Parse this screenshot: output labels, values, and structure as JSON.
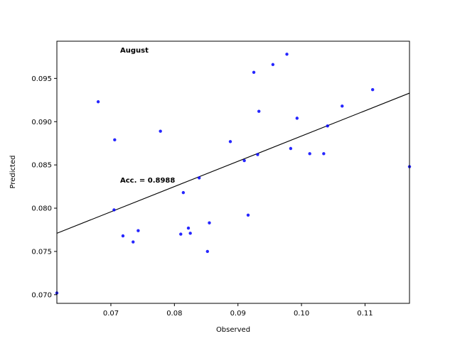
{
  "chart_data": {
    "type": "scatter",
    "title": "",
    "xlabel": "Observed",
    "ylabel": "Predicted",
    "xlim": [
      0.0615,
      0.117
    ],
    "ylim": [
      0.069,
      0.0993
    ],
    "xticks": [
      0.07,
      0.08,
      0.09,
      0.1,
      0.11
    ],
    "xtick_labels": [
      "0.07",
      "0.08",
      "0.09",
      "0.10",
      "0.11"
    ],
    "yticks": [
      0.07,
      0.075,
      0.08,
      0.085,
      0.09,
      0.095
    ],
    "ytick_labels": [
      "0.070",
      "0.075",
      "0.080",
      "0.085",
      "0.090",
      "0.095"
    ],
    "grid": false,
    "point_color": "#0000ff",
    "line_color": "#000000",
    "annotations": {
      "month": "August",
      "accuracy": "Acc. = 0.8988"
    },
    "points": [
      {
        "x": 0.0615,
        "y": 0.0702
      },
      {
        "x": 0.068,
        "y": 0.0923
      },
      {
        "x": 0.0706,
        "y": 0.0879
      },
      {
        "x": 0.0705,
        "y": 0.0798
      },
      {
        "x": 0.0719,
        "y": 0.0768
      },
      {
        "x": 0.0735,
        "y": 0.0761
      },
      {
        "x": 0.0743,
        "y": 0.0774
      },
      {
        "x": 0.0778,
        "y": 0.0889
      },
      {
        "x": 0.081,
        "y": 0.077
      },
      {
        "x": 0.0814,
        "y": 0.0818
      },
      {
        "x": 0.0822,
        "y": 0.0777
      },
      {
        "x": 0.0825,
        "y": 0.0771
      },
      {
        "x": 0.0839,
        "y": 0.0835
      },
      {
        "x": 0.0852,
        "y": 0.075
      },
      {
        "x": 0.0855,
        "y": 0.0783
      },
      {
        "x": 0.0888,
        "y": 0.0877
      },
      {
        "x": 0.091,
        "y": 0.0855
      },
      {
        "x": 0.0916,
        "y": 0.0792
      },
      {
        "x": 0.0925,
        "y": 0.0957
      },
      {
        "x": 0.0931,
        "y": 0.0862
      },
      {
        "x": 0.0933,
        "y": 0.0912
      },
      {
        "x": 0.0955,
        "y": 0.0966
      },
      {
        "x": 0.0977,
        "y": 0.0978
      },
      {
        "x": 0.0983,
        "y": 0.0869
      },
      {
        "x": 0.0993,
        "y": 0.0904
      },
      {
        "x": 0.1013,
        "y": 0.0863
      },
      {
        "x": 0.1035,
        "y": 0.0863
      },
      {
        "x": 0.1041,
        "y": 0.0895
      },
      {
        "x": 0.1064,
        "y": 0.0918
      },
      {
        "x": 0.1112,
        "y": 0.0937
      },
      {
        "x": 0.117,
        "y": 0.0848
      }
    ],
    "fit_line": {
      "x": [
        0.0615,
        0.117
      ],
      "y": [
        0.0771,
        0.0933
      ]
    }
  }
}
